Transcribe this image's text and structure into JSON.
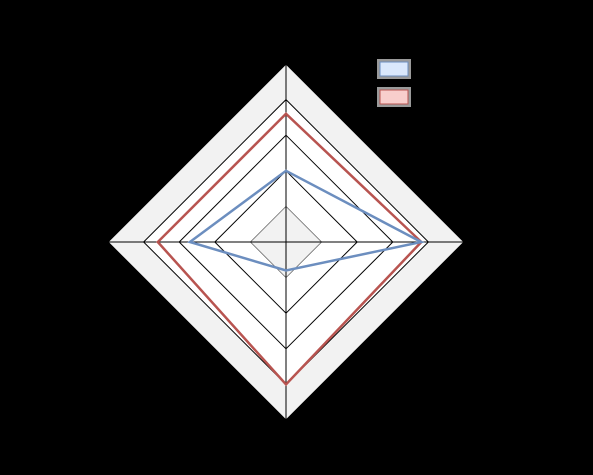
{
  "chart_data": {
    "type": "radar",
    "title": "",
    "axes": [
      "",
      "",
      "",
      ""
    ],
    "rlim": [
      0,
      5
    ],
    "ring_levels": [
      1,
      2,
      3,
      4,
      5
    ],
    "ring_fills": [
      "#f2f2f2",
      "#ffffff",
      "#ffffff",
      "#ffffff",
      "#f2f2f2"
    ],
    "series": [
      {
        "name": "",
        "values": [
          2.0,
          3.8,
          0.8,
          2.7
        ],
        "color": "#6c8ebf",
        "legend_fill": "#dae8fc"
      },
      {
        "name": "",
        "values": [
          3.6,
          3.8,
          4.0,
          3.6
        ],
        "color": "#b85450",
        "legend_fill": "#f8cecc"
      }
    ],
    "grid": true,
    "legend": "top-right"
  },
  "colors": {
    "background": "#000000",
    "grid_line": "#000000",
    "ring_fill_outer": "#f2f2f2",
    "ring_fill_inner": "#ffffff"
  }
}
